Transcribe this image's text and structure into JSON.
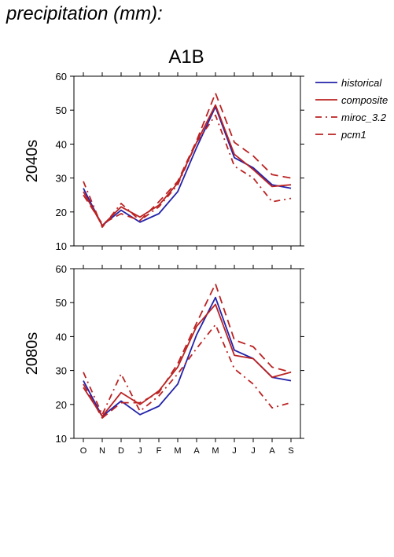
{
  "header": {
    "title": "precipitation (mm):"
  },
  "chart_data": {
    "type": "line",
    "scenario": "A1B",
    "categories": [
      "O",
      "N",
      "D",
      "J",
      "F",
      "M",
      "A",
      "M",
      "J",
      "J",
      "A",
      "S"
    ],
    "ylim": [
      10,
      60
    ],
    "yticks": [
      10,
      20,
      30,
      40,
      50,
      60
    ],
    "legend": {
      "placement": "right"
    },
    "series_styles": [
      {
        "name": "historical",
        "color": "#2222aa",
        "dash": ""
      },
      {
        "name": "composite",
        "color": "#bb2222",
        "dash": ""
      },
      {
        "name": "miroc_3.2",
        "color": "#bb2222",
        "dash": "8,5,2,5"
      },
      {
        "name": "pcm1",
        "color": "#bb2222",
        "dash": "10,6"
      }
    ],
    "panels": [
      {
        "label": "2040s",
        "series": [
          {
            "name": "historical",
            "values": [
              27,
              16,
              20.5,
              17,
              19.5,
              26,
              39,
              51,
              36,
              33,
              28,
              27
            ]
          },
          {
            "name": "composite",
            "values": [
              26,
              16,
              21.5,
              18.5,
              22,
              28.5,
              40.5,
              51.5,
              37,
              32.5,
              27.5,
              28
            ]
          },
          {
            "name": "miroc_3.2",
            "values": [
              29,
              15.5,
              22.5,
              17.5,
              21.5,
              28,
              40.5,
              48.5,
              33.5,
              30,
              23,
              24
            ]
          },
          {
            "name": "pcm1",
            "values": [
              25,
              16.5,
              19.5,
              17.5,
              23,
              29,
              41,
              55,
              40.5,
              36.5,
              31,
              30
            ]
          }
        ]
      },
      {
        "label": "2080s",
        "series": [
          {
            "name": "historical",
            "values": [
              27,
              16.5,
              21,
              17,
              19.5,
              26,
              40.5,
              51.5,
              36,
              33.5,
              28,
              27
            ]
          },
          {
            "name": "composite",
            "values": [
              25,
              16.5,
              23.5,
              20,
              24,
              31,
              43,
              49.5,
              34.5,
              33.5,
              28,
              29.5
            ]
          },
          {
            "name": "miroc_3.2",
            "values": [
              29.5,
              17,
              29,
              18,
              22.5,
              29,
              36.5,
              43.5,
              30.5,
              26,
              19,
              20.5
            ]
          },
          {
            "name": "pcm1",
            "values": [
              26,
              16,
              20.5,
              20.5,
              23.5,
              32,
              44,
              55.5,
              39,
              37,
              31,
              29.5
            ]
          }
        ]
      }
    ]
  }
}
